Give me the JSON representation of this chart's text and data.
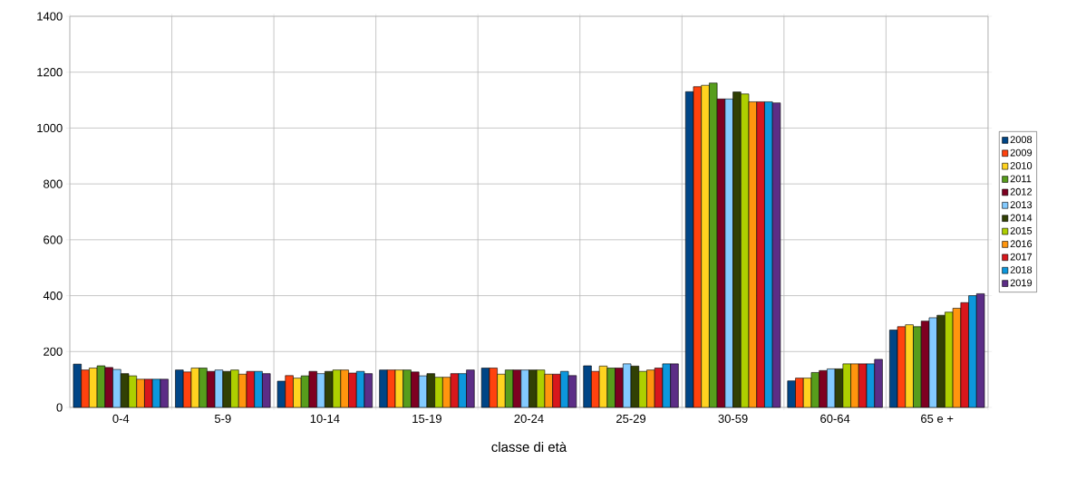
{
  "chart_data": {
    "type": "bar",
    "xlabel": "classe di età",
    "categories": [
      "0-4",
      "5-9",
      "10-14",
      "15-19",
      "20-24",
      "25-29",
      "30-59",
      "60-64",
      "65 e +"
    ],
    "ylim": [
      0,
      1400
    ],
    "yticks": [
      0,
      200,
      400,
      600,
      800,
      1000,
      1200,
      1400
    ],
    "grid": true,
    "legend": "right",
    "series": [
      {
        "name": "2008",
        "color": "#004586",
        "values": [
          155,
          134,
          94,
          134,
          141,
          149,
          1130,
          95,
          277
        ]
      },
      {
        "name": "2009",
        "color": "#ff420e",
        "values": [
          134,
          127,
          114,
          134,
          141,
          129,
          1148,
          105,
          289
        ]
      },
      {
        "name": "2010",
        "color": "#ffd320",
        "values": [
          141,
          141,
          105,
          134,
          119,
          148,
          1153,
          105,
          296
        ]
      },
      {
        "name": "2011",
        "color": "#579d1c",
        "values": [
          149,
          141,
          113,
          134,
          134,
          141,
          1161,
          125,
          289
        ]
      },
      {
        "name": "2012",
        "color": "#7e0021",
        "values": [
          143,
          129,
          129,
          127,
          134,
          141,
          1104,
          132,
          309
        ]
      },
      {
        "name": "2013",
        "color": "#83caff",
        "values": [
          136,
          134,
          121,
          113,
          134,
          156,
          1104,
          138,
          321
        ]
      },
      {
        "name": "2014",
        "color": "#314004",
        "values": [
          121,
          129,
          129,
          121,
          134,
          148,
          1129,
          138,
          330
        ]
      },
      {
        "name": "2015",
        "color": "#aecf00",
        "values": [
          113,
          134,
          134,
          108,
          134,
          129,
          1122,
          156,
          341
        ]
      },
      {
        "name": "2016",
        "color": "#ff950e",
        "values": [
          101,
          119,
          134,
          108,
          119,
          134,
          1094,
          156,
          355
        ]
      },
      {
        "name": "2017",
        "color": "#d8171c",
        "values": [
          101,
          129,
          123,
          121,
          119,
          141,
          1094,
          156,
          375
        ]
      },
      {
        "name": "2018",
        "color": "#0d97dc",
        "values": [
          101,
          129,
          129,
          121,
          129,
          156,
          1094,
          156,
          400
        ]
      },
      {
        "name": "2019",
        "color": "#5c2d86",
        "values": [
          101,
          121,
          121,
          134,
          114,
          156,
          1090,
          172,
          407
        ]
      }
    ]
  }
}
